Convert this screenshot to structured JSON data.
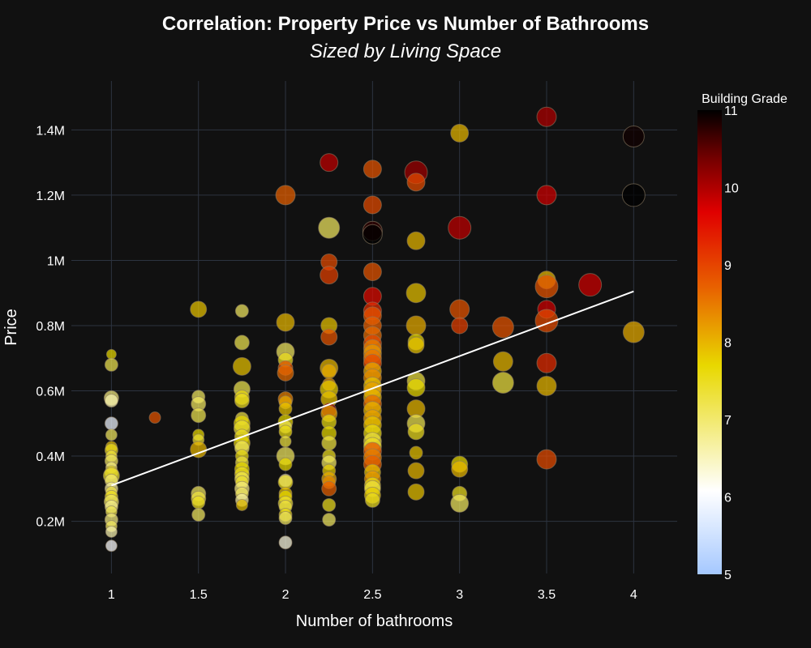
{
  "chart_data": {
    "type": "scatter",
    "title": "Correlation: Property Price vs Number of Bathrooms",
    "subtitle": "Sized by Living Space",
    "xlabel": "Number of bathrooms",
    "ylabel": "Price",
    "xlim": [
      0.77,
      4.25
    ],
    "ylim": [
      40000,
      1550000
    ],
    "xticks": [
      1,
      1.5,
      2,
      2.5,
      3,
      3.5,
      4
    ],
    "xtick_labels": [
      "1",
      "1.5",
      "2",
      "2.5",
      "3",
      "3.5",
      "4"
    ],
    "yticks": [
      200000,
      400000,
      600000,
      800000,
      1000000,
      1200000,
      1400000
    ],
    "ytick_labels": [
      "0.2M",
      "0.4M",
      "0.6M",
      "0.8M",
      "1M",
      "1.2M",
      "1.4M"
    ],
    "grid": true,
    "colorbar": {
      "title": "Building Grade",
      "min": 5,
      "max": 11,
      "ticks": [
        5,
        6,
        7,
        8,
        9,
        10,
        11
      ],
      "colorscale": [
        "#a5c8ff",
        "#ffffff",
        "#e8d800",
        "#e86000",
        "#e00000",
        "#700000",
        "#000000"
      ]
    },
    "trendline": {
      "x": [
        1,
        4
      ],
      "y": [
        310000,
        905000
      ],
      "color": "#ffffff"
    },
    "points": [
      [
        1,
        712000,
        7.6,
        6
      ],
      [
        1,
        680000,
        7.1,
        8
      ],
      [
        1,
        578000,
        6.8,
        9
      ],
      [
        1,
        570000,
        6.5,
        8
      ],
      [
        1,
        500000,
        5.8,
        8
      ],
      [
        1,
        465000,
        7.0,
        7
      ],
      [
        1,
        428000,
        7.8,
        7
      ],
      [
        1,
        418000,
        7.4,
        8
      ],
      [
        1,
        400000,
        7.2,
        7
      ],
      [
        1,
        385000,
        7.0,
        8
      ],
      [
        1,
        365000,
        6.8,
        7
      ],
      [
        1,
        350000,
        7.5,
        8
      ],
      [
        1,
        340000,
        7.3,
        10
      ],
      [
        1,
        325000,
        6.9,
        8
      ],
      [
        1,
        300000,
        6.6,
        8
      ],
      [
        1,
        290000,
        7.2,
        7
      ],
      [
        1,
        275000,
        7.4,
        8
      ],
      [
        1,
        260000,
        7.0,
        9
      ],
      [
        1,
        245000,
        6.7,
        8
      ],
      [
        1,
        230000,
        7.1,
        7
      ],
      [
        1,
        205000,
        6.8,
        8
      ],
      [
        1,
        185000,
        7.0,
        7
      ],
      [
        1,
        168000,
        6.5,
        7
      ],
      [
        1,
        125000,
        6.0,
        7
      ],
      [
        1.25,
        518000,
        8.8,
        7
      ],
      [
        1.5,
        850000,
        7.8,
        10
      ],
      [
        1.5,
        582000,
        7.0,
        8
      ],
      [
        1.5,
        560000,
        7.0,
        9
      ],
      [
        1.5,
        525000,
        7.1,
        9
      ],
      [
        1.5,
        465000,
        7.6,
        7
      ],
      [
        1.5,
        450000,
        7.3,
        7
      ],
      [
        1.5,
        420000,
        7.9,
        10
      ],
      [
        1.5,
        285000,
        7.0,
        9
      ],
      [
        1.5,
        270000,
        7.2,
        9
      ],
      [
        1.5,
        258000,
        7.4,
        8
      ],
      [
        1.5,
        220000,
        7.0,
        8
      ],
      [
        1.75,
        845000,
        7.0,
        8
      ],
      [
        1.75,
        748000,
        7.1,
        9
      ],
      [
        1.75,
        675000,
        7.8,
        11
      ],
      [
        1.75,
        605000,
        7.1,
        10
      ],
      [
        1.75,
        580000,
        7.5,
        9
      ],
      [
        1.75,
        570000,
        7.4,
        9
      ],
      [
        1.75,
        515000,
        7.2,
        8
      ],
      [
        1.75,
        500000,
        7.6,
        10
      ],
      [
        1.75,
        485000,
        7.3,
        10
      ],
      [
        1.75,
        460000,
        7.4,
        9
      ],
      [
        1.75,
        440000,
        7.6,
        10
      ],
      [
        1.75,
        425000,
        7.0,
        9
      ],
      [
        1.75,
        400000,
        7.5,
        8
      ],
      [
        1.75,
        380000,
        7.2,
        8
      ],
      [
        1.75,
        360000,
        7.6,
        9
      ],
      [
        1.75,
        345000,
        7.4,
        9
      ],
      [
        1.75,
        330000,
        7.1,
        9
      ],
      [
        1.75,
        320000,
        7.3,
        8
      ],
      [
        1.75,
        300000,
        6.8,
        9
      ],
      [
        1.75,
        285000,
        7.0,
        8
      ],
      [
        1.75,
        265000,
        6.6,
        8
      ],
      [
        1.75,
        250000,
        7.8,
        7
      ],
      [
        2,
        1200000,
        8.7,
        12
      ],
      [
        2,
        810000,
        7.9,
        11
      ],
      [
        2,
        720000,
        7.0,
        11
      ],
      [
        2,
        695000,
        7.4,
        9
      ],
      [
        2,
        670000,
        8.8,
        9
      ],
      [
        2,
        655000,
        8.6,
        10
      ],
      [
        2,
        575000,
        8.4,
        9
      ],
      [
        2,
        565000,
        8.0,
        8
      ],
      [
        2,
        545000,
        7.8,
        8
      ],
      [
        2,
        505000,
        7.6,
        9
      ],
      [
        2,
        490000,
        7.1,
        8
      ],
      [
        2,
        475000,
        7.5,
        8
      ],
      [
        2,
        445000,
        7.2,
        7
      ],
      [
        2,
        400000,
        7.0,
        11
      ],
      [
        2,
        375000,
        7.6,
        8
      ],
      [
        2,
        325000,
        6.0,
        8
      ],
      [
        2,
        320000,
        7.4,
        9
      ],
      [
        2,
        285000,
        7.8,
        8
      ],
      [
        2,
        275000,
        7.6,
        8
      ],
      [
        2,
        255000,
        7.3,
        9
      ],
      [
        2,
        245000,
        7.2,
        8
      ],
      [
        2,
        220000,
        7.5,
        8
      ],
      [
        2,
        210000,
        7.0,
        8
      ],
      [
        2,
        135000,
        6.2,
        8
      ],
      [
        2.25,
        1300000,
        9.8,
        11
      ],
      [
        2.25,
        1100000,
        7.0,
        13
      ],
      [
        2.25,
        995000,
        8.9,
        10
      ],
      [
        2.25,
        955000,
        9.0,
        11
      ],
      [
        2.25,
        800000,
        7.8,
        10
      ],
      [
        2.25,
        765000,
        8.8,
        10
      ],
      [
        2.25,
        670000,
        7.9,
        11
      ],
      [
        2.25,
        660000,
        8.0,
        9
      ],
      [
        2.25,
        620000,
        8.2,
        8
      ],
      [
        2.25,
        605000,
        7.7,
        11
      ],
      [
        2.25,
        575000,
        7.8,
        10
      ],
      [
        2.25,
        540000,
        10.0,
        9
      ],
      [
        2.25,
        530000,
        8.1,
        10
      ],
      [
        2.25,
        505000,
        7.5,
        9
      ],
      [
        2.25,
        470000,
        7.6,
        9
      ],
      [
        2.25,
        440000,
        7.2,
        9
      ],
      [
        2.25,
        400000,
        7.4,
        8
      ],
      [
        2.25,
        380000,
        7.0,
        9
      ],
      [
        2.25,
        355000,
        7.7,
        8
      ],
      [
        2.25,
        330000,
        8.0,
        9
      ],
      [
        2.25,
        320000,
        8.3,
        8
      ],
      [
        2.25,
        300000,
        8.7,
        9
      ],
      [
        2.25,
        250000,
        7.4,
        8
      ],
      [
        2.25,
        205000,
        7.0,
        8
      ],
      [
        2.5,
        1280000,
        8.8,
        11
      ],
      [
        2.5,
        1090000,
        10.7,
        12
      ],
      [
        2.5,
        1080000,
        11.0,
        12
      ],
      [
        2.5,
        1170000,
        8.9,
        11
      ],
      [
        2.5,
        965000,
        8.8,
        11
      ],
      [
        2.5,
        890000,
        9.5,
        11
      ],
      [
        2.5,
        845000,
        9.2,
        11
      ],
      [
        2.5,
        830000,
        8.8,
        11
      ],
      [
        2.5,
        800000,
        8.7,
        11
      ],
      [
        2.5,
        770000,
        8.6,
        11
      ],
      [
        2.5,
        745000,
        8.9,
        11
      ],
      [
        2.5,
        730000,
        8.4,
        11
      ],
      [
        2.5,
        715000,
        8.2,
        11
      ],
      [
        2.5,
        700000,
        8.5,
        11
      ],
      [
        2.5,
        685000,
        8.9,
        11
      ],
      [
        2.5,
        660000,
        8.0,
        11
      ],
      [
        2.5,
        640000,
        8.3,
        11
      ],
      [
        2.5,
        615000,
        7.8,
        11
      ],
      [
        2.5,
        600000,
        8.1,
        11
      ],
      [
        2.5,
        580000,
        7.9,
        11
      ],
      [
        2.5,
        560000,
        8.6,
        11
      ],
      [
        2.5,
        540000,
        7.9,
        11
      ],
      [
        2.5,
        515000,
        8.1,
        11
      ],
      [
        2.5,
        495000,
        7.8,
        11
      ],
      [
        2.5,
        470000,
        7.5,
        11
      ],
      [
        2.5,
        445000,
        7.2,
        11
      ],
      [
        2.5,
        430000,
        7.4,
        11
      ],
      [
        2.5,
        415000,
        8.8,
        11
      ],
      [
        2.5,
        395000,
        8.4,
        11
      ],
      [
        2.5,
        375000,
        8.7,
        11
      ],
      [
        2.5,
        350000,
        7.8,
        10
      ],
      [
        2.5,
        330000,
        8.2,
        10
      ],
      [
        2.5,
        310000,
        7.5,
        10
      ],
      [
        2.5,
        300000,
        7.2,
        10
      ],
      [
        2.5,
        280000,
        7.7,
        10
      ],
      [
        2.5,
        265000,
        7.4,
        9
      ],
      [
        2.75,
        1270000,
        10.0,
        14
      ],
      [
        2.75,
        1240000,
        8.9,
        11
      ],
      [
        2.75,
        1060000,
        7.9,
        11
      ],
      [
        2.75,
        900000,
        7.8,
        12
      ],
      [
        2.75,
        800000,
        8.0,
        12
      ],
      [
        2.75,
        750000,
        7.6,
        10
      ],
      [
        2.75,
        740000,
        7.8,
        10
      ],
      [
        2.75,
        630000,
        7.2,
        11
      ],
      [
        2.75,
        610000,
        7.6,
        11
      ],
      [
        2.75,
        545000,
        7.9,
        11
      ],
      [
        2.75,
        500000,
        7.1,
        11
      ],
      [
        2.75,
        475000,
        7.4,
        10
      ],
      [
        2.75,
        410000,
        7.8,
        8
      ],
      [
        2.75,
        355000,
        7.9,
        10
      ],
      [
        2.75,
        290000,
        7.8,
        10
      ],
      [
        3,
        1390000,
        7.9,
        11
      ],
      [
        3,
        1100000,
        9.8,
        14
      ],
      [
        3,
        850000,
        8.8,
        12
      ],
      [
        3,
        800000,
        9.0,
        10
      ],
      [
        3,
        375000,
        7.6,
        10
      ],
      [
        3,
        360000,
        7.9,
        10
      ],
      [
        3,
        285000,
        7.4,
        9
      ],
      [
        3,
        255000,
        7.0,
        11
      ],
      [
        3.25,
        795000,
        8.8,
        13
      ],
      [
        3.25,
        690000,
        7.9,
        12
      ],
      [
        3.25,
        625000,
        7.2,
        13
      ],
      [
        3.5,
        1440000,
        9.9,
        12
      ],
      [
        3.5,
        1200000,
        9.7,
        12
      ],
      [
        3.5,
        940000,
        7.9,
        11
      ],
      [
        3.5,
        920000,
        8.8,
        14
      ],
      [
        3.5,
        850000,
        9.7,
        11
      ],
      [
        3.5,
        815000,
        8.9,
        14
      ],
      [
        3.5,
        685000,
        9.2,
        12
      ],
      [
        3.5,
        615000,
        7.9,
        12
      ],
      [
        3.5,
        390000,
        8.9,
        12
      ],
      [
        3.75,
        925000,
        9.7,
        14
      ],
      [
        4,
        1380000,
        10.9,
        13
      ],
      [
        4,
        1200000,
        11.0,
        14
      ],
      [
        4,
        780000,
        8.0,
        13
      ]
    ]
  }
}
